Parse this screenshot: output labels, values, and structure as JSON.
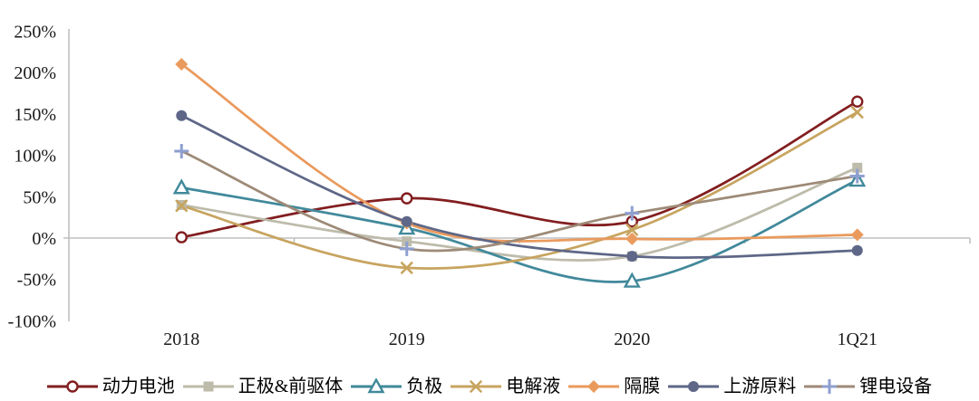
{
  "chart_data": {
    "type": "line",
    "title": "",
    "xlabel": "",
    "ylabel": "",
    "categories": [
      "2018",
      "2019",
      "2020",
      "1Q21"
    ],
    "y_tick_labels": [
      "250%",
      "200%",
      "150%",
      "100%",
      "50%",
      "0%",
      "-50%",
      "-100%"
    ],
    "y_tick_values": [
      250,
      200,
      150,
      100,
      50,
      0,
      -50,
      -100
    ],
    "ylim": [
      -100,
      250
    ],
    "unit": "percent",
    "grid": "zero-line-only",
    "smooth_lines": true,
    "legend_position": "bottom",
    "axis_color": "#BFBFBF",
    "series": [
      {
        "id": "power-battery",
        "name": "动力电池",
        "color": "#821E20",
        "marker": "circle-open",
        "values": [
          1,
          48,
          20,
          165
        ]
      },
      {
        "id": "cathode-precursor",
        "name": "正极&前驱体",
        "color": "#BDBBAA",
        "marker": "square",
        "values": [
          40,
          -4,
          -22,
          85
        ]
      },
      {
        "id": "anode",
        "name": "负极",
        "color": "#41899B",
        "marker": "triangle-open",
        "values": [
          61,
          12,
          -52,
          70
        ]
      },
      {
        "id": "electrolyte",
        "name": "电解液",
        "color": "#C7A45F",
        "marker": "x",
        "values": [
          39,
          -36,
          10,
          152
        ]
      },
      {
        "id": "separator",
        "name": "隔膜",
        "color": "#EA9A5D",
        "marker": "diamond",
        "values": [
          210,
          18,
          -1,
          4
        ]
      },
      {
        "id": "upstream-materials",
        "name": "上游原料",
        "color": "#5E6787",
        "marker": "circle",
        "values": [
          148,
          20,
          -22,
          -15
        ]
      },
      {
        "id": "lithium-equipment",
        "name": "锂电设备",
        "color": "#9D8A77",
        "marker": "plus",
        "marker_color": "#8E9FD0",
        "values": [
          105,
          -13,
          30,
          75
        ]
      }
    ]
  }
}
